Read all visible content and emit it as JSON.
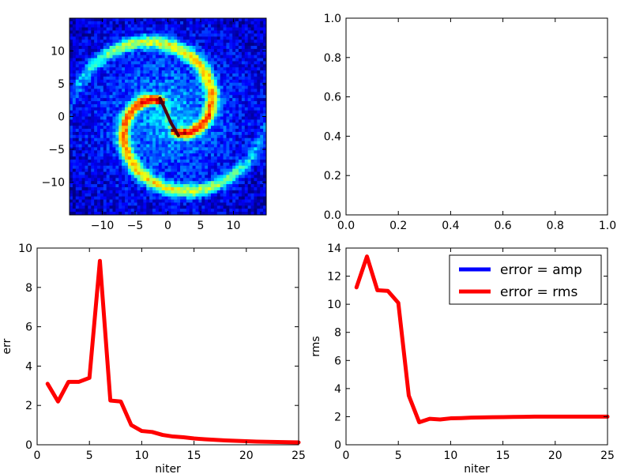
{
  "chart_data": [
    {
      "id": "panel-top-left",
      "type": "heatmap",
      "title": "",
      "xlim": [
        -15,
        15
      ],
      "ylim": [
        -15,
        15
      ],
      "xticks": [
        -10,
        -5,
        0,
        5,
        10
      ],
      "yticks": [
        -10,
        -5,
        0,
        5,
        10
      ],
      "xticklabels": [
        "−10",
        "−5",
        "0",
        "5",
        "10"
      ],
      "yticklabels": [
        "−10",
        "−5",
        "0",
        "5",
        "10"
      ],
      "colormap": "jet",
      "description_series": {
        "overlay_line": [
          [
            -1.2,
            2.8
          ],
          [
            0.5,
            -1.0
          ],
          [
            1.6,
            -2.9
          ]
        ],
        "overlay_line_color": "#4b0010"
      }
    },
    {
      "id": "panel-top-right",
      "type": "line",
      "title": "",
      "xlim": [
        0.0,
        1.0
      ],
      "ylim": [
        0.0,
        1.0
      ],
      "xticks": [
        0.0,
        0.2,
        0.4,
        0.6,
        0.8,
        1.0
      ],
      "yticks": [
        0.0,
        0.2,
        0.4,
        0.6,
        0.8,
        1.0
      ],
      "xticklabels": [
        "0.0",
        "0.2",
        "0.4",
        "0.6",
        "0.8",
        "1.0"
      ],
      "yticklabels": [
        "0.0",
        "0.2",
        "0.4",
        "0.6",
        "0.8",
        "1.0"
      ],
      "series": []
    },
    {
      "id": "panel-bottom-left",
      "type": "line",
      "title": "",
      "xlabel": "niter",
      "ylabel": "err",
      "xlim": [
        0,
        25
      ],
      "ylim": [
        0,
        10
      ],
      "xticks": [
        0,
        5,
        10,
        15,
        20,
        25
      ],
      "yticks": [
        0,
        2,
        4,
        6,
        8,
        10
      ],
      "xticklabels": [
        "0",
        "5",
        "10",
        "15",
        "20",
        "25"
      ],
      "yticklabels": [
        "0",
        "2",
        "4",
        "6",
        "8",
        "10"
      ],
      "series": [
        {
          "color": "#ff0000",
          "x": [
            1,
            2,
            3,
            4,
            5,
            6,
            7,
            8,
            9,
            10,
            11,
            12,
            13,
            14,
            15,
            16,
            17,
            18,
            19,
            20,
            21,
            22,
            23,
            24,
            25
          ],
          "y": [
            3.1,
            2.2,
            3.2,
            3.2,
            3.4,
            9.35,
            2.25,
            2.2,
            1.0,
            0.7,
            0.65,
            0.5,
            0.42,
            0.38,
            0.32,
            0.28,
            0.25,
            0.22,
            0.2,
            0.18,
            0.16,
            0.15,
            0.14,
            0.13,
            0.12
          ]
        }
      ]
    },
    {
      "id": "panel-bottom-right",
      "type": "line",
      "title": "",
      "xlabel": "niter",
      "ylabel": "rms",
      "xlim": [
        0,
        25
      ],
      "ylim": [
        0,
        14
      ],
      "xticks": [
        0,
        5,
        10,
        15,
        20,
        25
      ],
      "yticks": [
        0,
        2,
        4,
        6,
        8,
        10,
        12,
        14
      ],
      "xticklabels": [
        "0",
        "5",
        "10",
        "15",
        "20",
        "25"
      ],
      "yticklabels": [
        "0",
        "2",
        "4",
        "6",
        "8",
        "10",
        "12",
        "14"
      ],
      "legend_placement": "top-right",
      "series": [
        {
          "name": "error = amp",
          "color": "#0000ff",
          "x": [],
          "y": []
        },
        {
          "name": "error = rms",
          "color": "#ff0000",
          "x": [
            1,
            2,
            3,
            4,
            5,
            6,
            7,
            8,
            9,
            10,
            11,
            12,
            13,
            14,
            15,
            16,
            17,
            18,
            19,
            20,
            21,
            22,
            23,
            24,
            25
          ],
          "y": [
            11.2,
            13.4,
            11.0,
            10.95,
            10.1,
            3.5,
            1.6,
            1.85,
            1.8,
            1.88,
            1.9,
            1.93,
            1.95,
            1.96,
            1.97,
            1.98,
            1.99,
            2.0,
            2.0,
            2.0,
            2.0,
            2.0,
            2.0,
            2.0,
            2.0
          ]
        }
      ]
    }
  ]
}
